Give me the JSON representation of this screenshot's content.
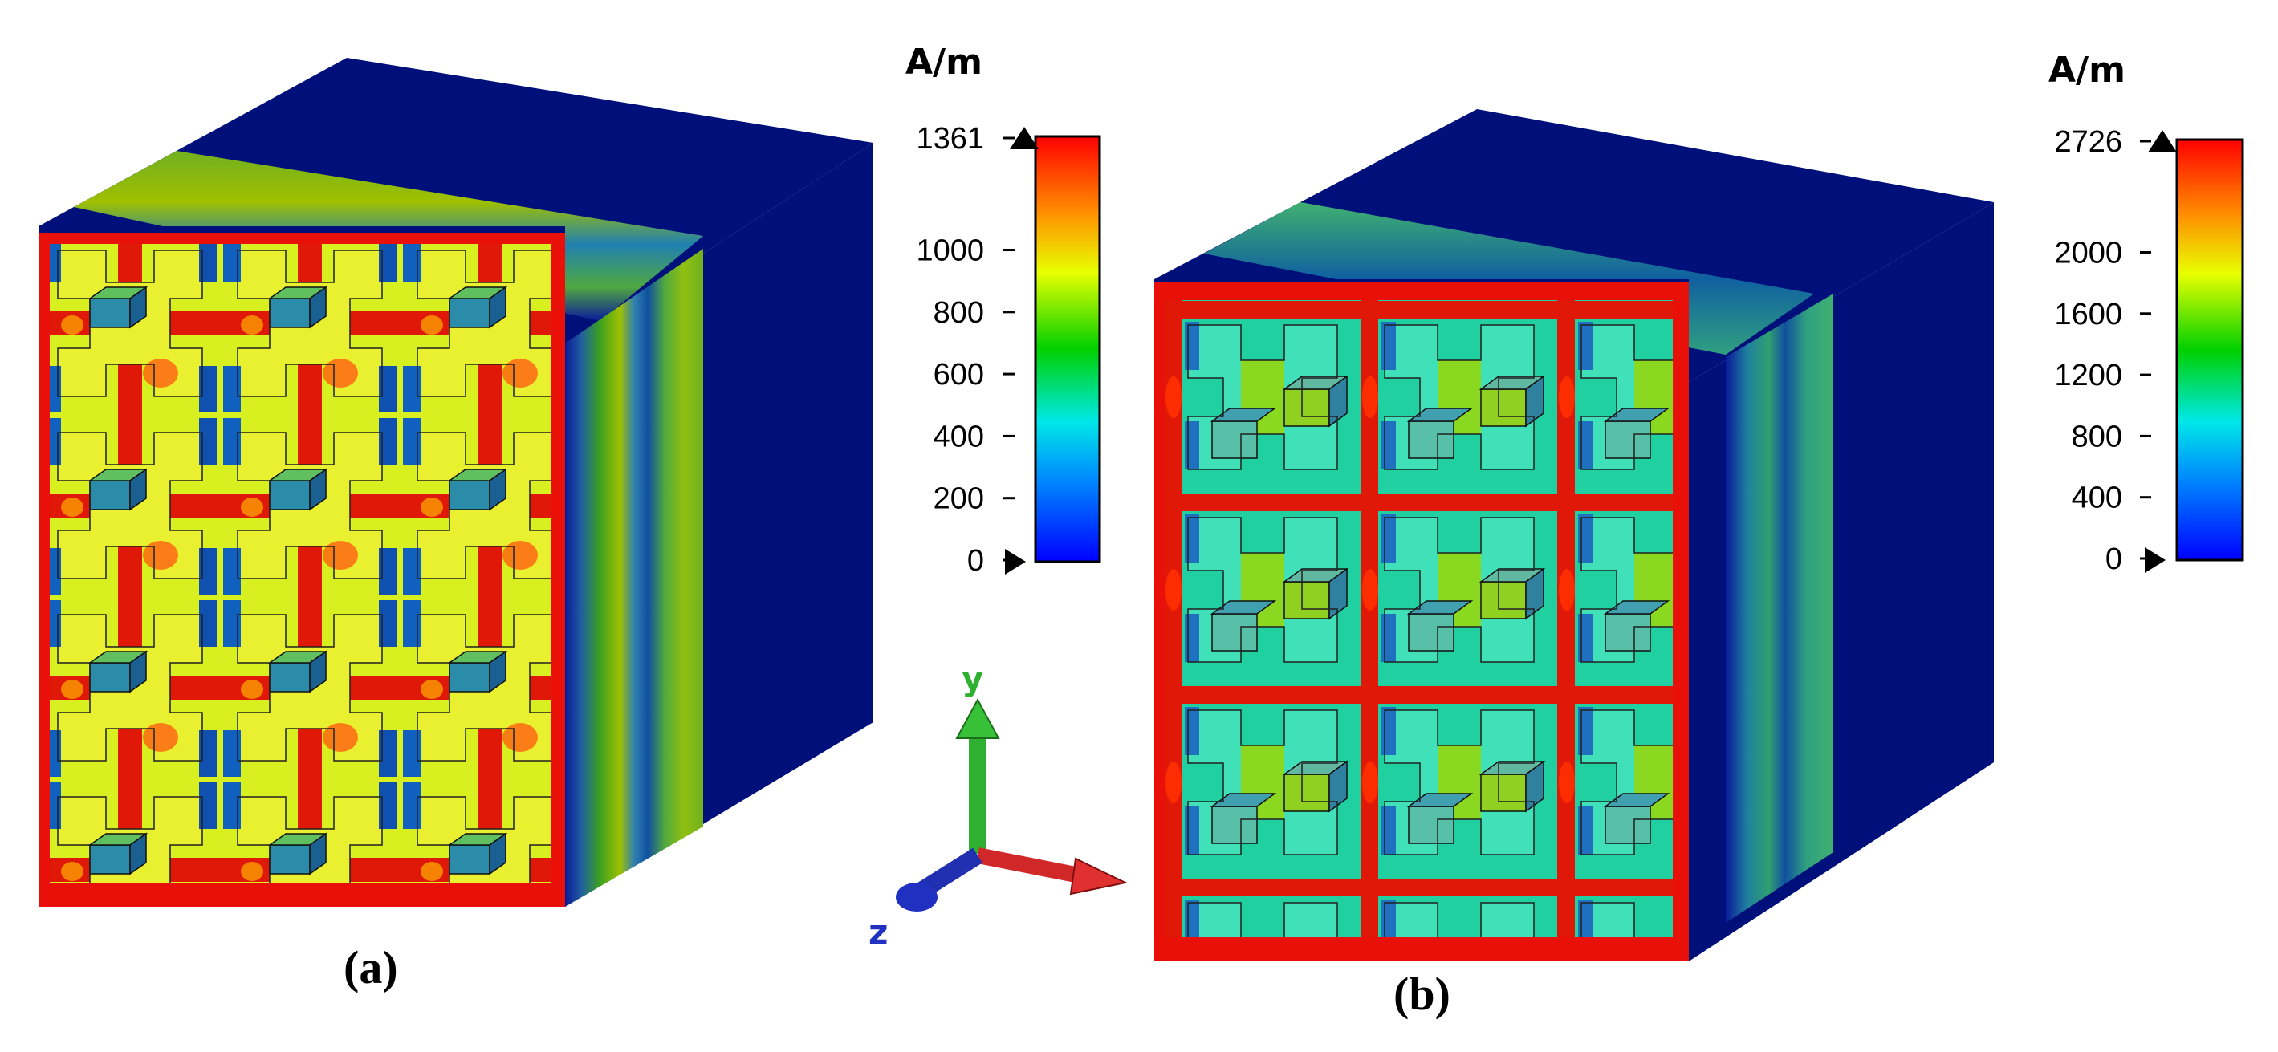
{
  "panels": [
    {
      "id": "a",
      "label": "(a)",
      "colorbar": {
        "unit": "A/m",
        "ticks": [
          "1361",
          "1000",
          "800",
          "600",
          "400",
          "200",
          "0"
        ],
        "tick_values": [
          1361,
          1000,
          800,
          600,
          400,
          200,
          0
        ],
        "min": 0,
        "max": 1361
      }
    },
    {
      "id": "b",
      "label": "(b)",
      "colorbar": {
        "unit": "A/m",
        "ticks": [
          "2726",
          "2000",
          "1600",
          "1200",
          "800",
          "400",
          "0"
        ],
        "tick_values": [
          2726,
          2000,
          1600,
          1200,
          800,
          400,
          0
        ],
        "min": 0,
        "max": 2726
      }
    }
  ],
  "triad": {
    "y": "y",
    "z": "z"
  },
  "colors": {
    "background": "#00007a",
    "low": "#0000ff",
    "mid": "#00ff00",
    "high": "#ff0000",
    "frame": "#e81008"
  }
}
